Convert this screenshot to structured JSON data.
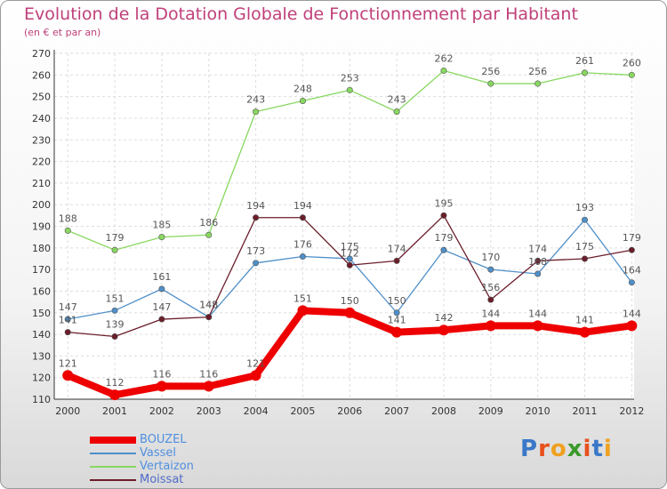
{
  "header": {
    "title": "Evolution de la Dotation Globale de Fonctionnement par Habitant",
    "subtitle": "(en € et par an)"
  },
  "logo": {
    "text": "Proxiti",
    "letter_colors": [
      "#3a78c8",
      "#e8501c",
      "#f0a020",
      "#3a9a2a",
      "#e8501c",
      "#3a78c8",
      "#f0a020"
    ]
  },
  "chart_data": {
    "type": "line",
    "x": [
      "2000",
      "2001",
      "2002",
      "2003",
      "2004",
      "2005",
      "2006",
      "2007",
      "2008",
      "2009",
      "2010",
      "2011",
      "2012"
    ],
    "ylim": [
      110,
      270
    ],
    "yticks": [
      110,
      120,
      130,
      140,
      150,
      160,
      170,
      180,
      190,
      200,
      210,
      220,
      230,
      240,
      250,
      260,
      270
    ],
    "grid": true,
    "legend_position": "bottom-left",
    "series": [
      {
        "name": "BOUZEL",
        "color": "#ee0000",
        "values": [
          121,
          112,
          116,
          116,
          121,
          151,
          150,
          141,
          142,
          144,
          144,
          141,
          144
        ]
      },
      {
        "name": "Vassel",
        "color": "#4f8fc8",
        "values": [
          147,
          151,
          161,
          148,
          173,
          176,
          175,
          150,
          179,
          170,
          168,
          193,
          164
        ]
      },
      {
        "name": "Vertaizon",
        "color": "#88d860",
        "values": [
          188,
          179,
          185,
          186,
          243,
          248,
          253,
          243,
          262,
          256,
          256,
          261,
          260
        ]
      },
      {
        "name": "Moissat",
        "color": "#6b1d2a",
        "values": [
          141,
          139,
          147,
          148,
          194,
          194,
          172,
          174,
          195,
          156,
          174,
          175,
          179
        ]
      }
    ]
  }
}
